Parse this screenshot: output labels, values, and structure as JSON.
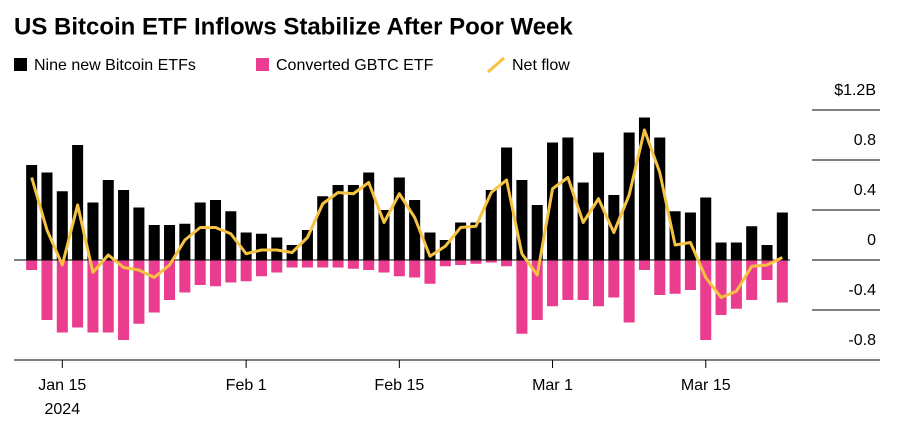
{
  "chart_data": {
    "type": "bar",
    "title": "US Bitcoin ETF Inflows Stabilize After Poor Week",
    "categories": [
      null,
      null,
      "Jan 15",
      null,
      null,
      null,
      null,
      null,
      null,
      null,
      null,
      null,
      null,
      null,
      "Feb 1",
      null,
      null,
      null,
      null,
      null,
      null,
      null,
      null,
      null,
      "Feb 15",
      null,
      null,
      null,
      null,
      null,
      null,
      null,
      null,
      null,
      "Mar 1",
      null,
      null,
      null,
      null,
      null,
      null,
      null,
      null,
      null,
      "Mar 15",
      null,
      null,
      null,
      null,
      null
    ],
    "x_sublabel": "2024",
    "series": [
      {
        "name": "Nine new Bitcoin ETFs",
        "type": "bar",
        "color": "#000000",
        "values": [
          0.76,
          0.7,
          0.55,
          0.92,
          0.46,
          0.64,
          0.56,
          0.42,
          0.28,
          0.28,
          0.29,
          0.46,
          0.48,
          0.39,
          0.22,
          0.21,
          0.18,
          0.12,
          0.24,
          0.51,
          0.6,
          0.6,
          0.7,
          0.4,
          0.66,
          0.48,
          0.22,
          0.16,
          0.3,
          0.3,
          0.56,
          0.9,
          0.64,
          0.44,
          0.94,
          0.98,
          0.62,
          0.86,
          0.52,
          1.02,
          1.14,
          0.98,
          0.39,
          0.38,
          0.5,
          0.14,
          0.14,
          0.27,
          0.12,
          0.38
        ]
      },
      {
        "name": "Converted GBTC ETF",
        "type": "bar",
        "color": "#ea3d8f",
        "values": [
          -0.08,
          -0.48,
          -0.58,
          -0.54,
          -0.58,
          -0.58,
          -0.64,
          -0.51,
          -0.42,
          -0.32,
          -0.26,
          -0.2,
          -0.21,
          -0.18,
          -0.17,
          -0.13,
          -0.1,
          -0.06,
          -0.06,
          -0.06,
          -0.06,
          -0.07,
          -0.08,
          -0.1,
          -0.13,
          -0.14,
          -0.19,
          -0.05,
          -0.04,
          -0.03,
          -0.02,
          -0.05,
          -0.59,
          -0.48,
          -0.37,
          -0.32,
          -0.32,
          -0.37,
          -0.3,
          -0.5,
          -0.08,
          -0.28,
          -0.27,
          -0.24,
          -0.64,
          -0.44,
          -0.39,
          -0.32,
          -0.16,
          -0.34
        ]
      },
      {
        "name": "Net flow",
        "type": "line",
        "color": "#f5c242",
        "values": [
          0.66,
          0.24,
          -0.04,
          0.44,
          -0.1,
          0.04,
          -0.06,
          -0.08,
          -0.14,
          -0.04,
          0.16,
          0.26,
          0.26,
          0.21,
          0.05,
          0.08,
          0.08,
          0.06,
          0.18,
          0.45,
          0.54,
          0.53,
          0.62,
          0.3,
          0.53,
          0.34,
          0.03,
          0.11,
          0.26,
          0.27,
          0.54,
          0.64,
          0.05,
          -0.12,
          0.57,
          0.66,
          0.3,
          0.49,
          0.22,
          0.52,
          1.04,
          0.7,
          0.12,
          0.14,
          -0.14,
          -0.3,
          -0.25,
          -0.05,
          -0.04,
          0.02
        ]
      }
    ],
    "ylim": [
      -0.8,
      1.2
    ],
    "yticks": [
      {
        "value": 1.2,
        "label": "$1.2B"
      },
      0.8,
      0.4,
      0,
      -0.4,
      -0.8
    ],
    "grid": false
  }
}
